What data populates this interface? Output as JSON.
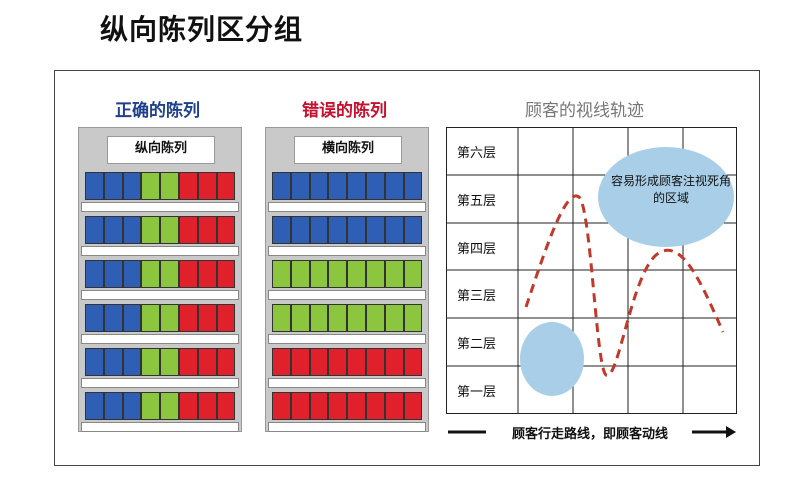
{
  "title": "纵向陈列区分组",
  "headings": {
    "right": "正确的陈列",
    "wrong": "错误的陈列",
    "track": "顾客的视线轨迹"
  },
  "shelves": {
    "right_label": "纵向陈列",
    "wrong_label": "横向陈列"
  },
  "track": {
    "floors": [
      "第六层",
      "第五层",
      "第四层",
      "第三层",
      "第二层",
      "第一层"
    ],
    "blind_zone": "容易形成顾客注视死角的区域",
    "flow_text": "顾客行走路线，即顾客动线"
  },
  "colors": {
    "blue": "#2f5fb4",
    "green": "#8cc63e",
    "red": "#e0202a",
    "bubble": "#a9cfe8",
    "path": "#c0392b"
  }
}
